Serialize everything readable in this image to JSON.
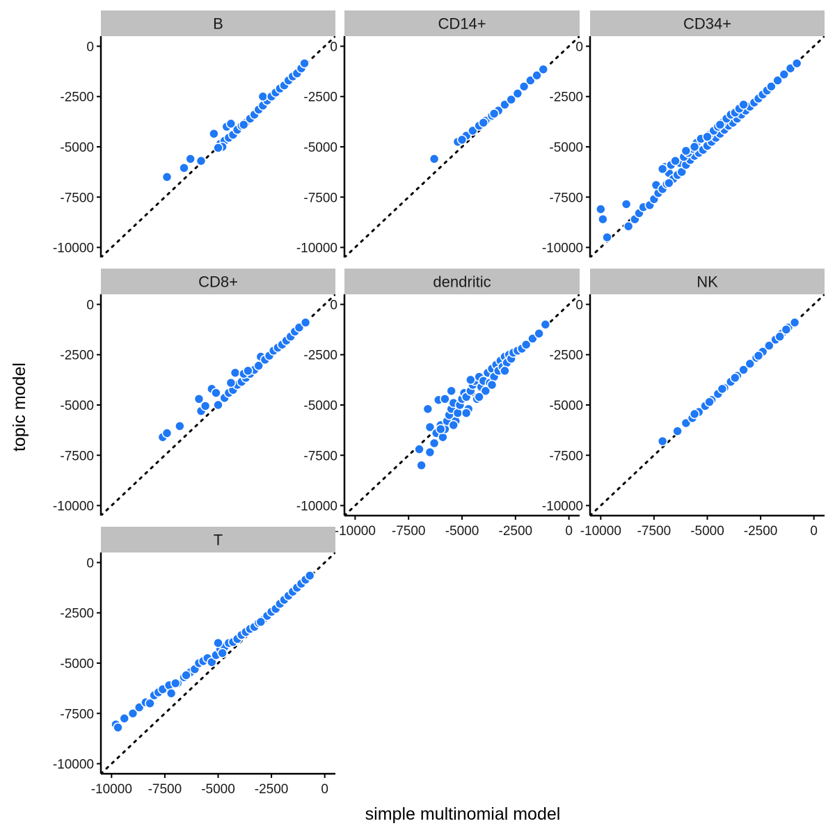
{
  "chart_data": {
    "type": "scatter",
    "title": "",
    "xlabel": "simple multinomial model",
    "ylabel": "topic model",
    "xlim": [
      -10500,
      500
    ],
    "ylim": [
      -10500,
      500
    ],
    "x_ticks": [
      -10000,
      -7500,
      -5000,
      -2500,
      0
    ],
    "x_tick_labels": [
      "-10000",
      "-7500",
      "-5000",
      "-2500",
      "0"
    ],
    "y_ticks": [
      0,
      -2500,
      -5000,
      -7500,
      -10000
    ],
    "y_tick_labels": [
      "0",
      "-2500",
      "-5000",
      "-7500",
      "-10000"
    ],
    "reference_line": {
      "type": "identity",
      "style": "dotted"
    },
    "colors": {
      "point": "#1f78f5",
      "point_outline": "#ffffff",
      "strip_bg": "#c0c0c0",
      "axis": "#000000"
    },
    "facets": [
      {
        "label": "B",
        "points": [
          [
            -7400,
            -6500
          ],
          [
            -6600,
            -6050
          ],
          [
            -6300,
            -5600
          ],
          [
            -5800,
            -5700
          ],
          [
            -5200,
            -4350
          ],
          [
            -4600,
            -4000
          ],
          [
            -4400,
            -3850
          ],
          [
            -4900,
            -4850
          ],
          [
            -4700,
            -4700
          ],
          [
            -4500,
            -4550
          ],
          [
            -4300,
            -4400
          ],
          [
            -4100,
            -4150
          ],
          [
            -3900,
            -3950
          ],
          [
            -3700,
            -3800
          ],
          [
            -3500,
            -3600
          ],
          [
            -3300,
            -3400
          ],
          [
            -3100,
            -3150
          ],
          [
            -2900,
            -2950
          ],
          [
            -2700,
            -2700
          ],
          [
            -2900,
            -2500
          ],
          [
            -2500,
            -2500
          ],
          [
            -2300,
            -2300
          ],
          [
            -2100,
            -2100
          ],
          [
            -1900,
            -1950
          ],
          [
            -1700,
            -1700
          ],
          [
            -1500,
            -1500
          ],
          [
            -1300,
            -1350
          ],
          [
            -1100,
            -1100
          ],
          [
            -950,
            -850
          ],
          [
            -4800,
            -5000
          ],
          [
            -5000,
            -5050
          ],
          [
            -3800,
            -3900
          ]
        ]
      },
      {
        "label": "CD14+",
        "points": [
          [
            -6300,
            -5600
          ],
          [
            -5200,
            -4750
          ],
          [
            -4800,
            -4450
          ],
          [
            -4500,
            -4200
          ],
          [
            -4200,
            -3950
          ],
          [
            -3900,
            -3700
          ],
          [
            -3600,
            -3450
          ],
          [
            -3300,
            -3200
          ],
          [
            -3000,
            -2900
          ],
          [
            -2700,
            -2650
          ],
          [
            -2400,
            -2350
          ],
          [
            -2100,
            -2000
          ],
          [
            -1800,
            -1700
          ],
          [
            -1500,
            -1450
          ],
          [
            -1200,
            -1150
          ],
          [
            -5000,
            -4650
          ],
          [
            -4000,
            -3800
          ],
          [
            -3500,
            -3350
          ]
        ]
      },
      {
        "label": "CD34+",
        "points": [
          [
            -10000,
            -8100
          ],
          [
            -9900,
            -8600
          ],
          [
            -9700,
            -9500
          ],
          [
            -8800,
            -7850
          ],
          [
            -8700,
            -8950
          ],
          [
            -8400,
            -8600
          ],
          [
            -8200,
            -8300
          ],
          [
            -8000,
            -8000
          ],
          [
            -7700,
            -7900
          ],
          [
            -7500,
            -7600
          ],
          [
            -7300,
            -7300
          ],
          [
            -7400,
            -6900
          ],
          [
            -7100,
            -7100
          ],
          [
            -6900,
            -6850
          ],
          [
            -6800,
            -6300
          ],
          [
            -6600,
            -6600
          ],
          [
            -6400,
            -6400
          ],
          [
            -6200,
            -6250
          ],
          [
            -6300,
            -5800
          ],
          [
            -6000,
            -5900
          ],
          [
            -5800,
            -5650
          ],
          [
            -5600,
            -5450
          ],
          [
            -5400,
            -5300
          ],
          [
            -5500,
            -4800
          ],
          [
            -5200,
            -5150
          ],
          [
            -5000,
            -4950
          ],
          [
            -4800,
            -4750
          ],
          [
            -4600,
            -4550
          ],
          [
            -4400,
            -4350
          ],
          [
            -4200,
            -4150
          ],
          [
            -4000,
            -3950
          ],
          [
            -3800,
            -3800
          ],
          [
            -3600,
            -3600
          ],
          [
            -3400,
            -3400
          ],
          [
            -3200,
            -3200
          ],
          [
            -3000,
            -3000
          ],
          [
            -2800,
            -2800
          ],
          [
            -2600,
            -2600
          ],
          [
            -2400,
            -2400
          ],
          [
            -2200,
            -2200
          ],
          [
            -2000,
            -2000
          ],
          [
            -1700,
            -1700
          ],
          [
            -1400,
            -1400
          ],
          [
            -1100,
            -1100
          ],
          [
            -800,
            -850
          ],
          [
            -7000,
            -6000
          ],
          [
            -6700,
            -5900
          ],
          [
            -6500,
            -5700
          ],
          [
            -6100,
            -5500
          ],
          [
            -5900,
            -5300
          ],
          [
            -5700,
            -5100
          ],
          [
            -5300,
            -4600
          ],
          [
            -4900,
            -4400
          ],
          [
            -4700,
            -4200
          ],
          [
            -4500,
            -4000
          ],
          [
            -4300,
            -3800
          ],
          [
            -4100,
            -3600
          ],
          [
            -3900,
            -3400
          ],
          [
            -3700,
            -3300
          ],
          [
            -3500,
            -3100
          ],
          [
            -5000,
            -4500
          ],
          [
            -5600,
            -5000
          ],
          [
            -6000,
            -5200
          ],
          [
            -4400,
            -3900
          ],
          [
            -3300,
            -2900
          ],
          [
            -7100,
            -6100
          ],
          [
            -6800,
            -6800
          ]
        ]
      },
      {
        "label": "CD8+",
        "points": [
          [
            -7600,
            -6600
          ],
          [
            -7400,
            -6400
          ],
          [
            -6800,
            -6050
          ],
          [
            -5800,
            -5300
          ],
          [
            -5900,
            -4700
          ],
          [
            -5600,
            -5050
          ],
          [
            -5300,
            -4200
          ],
          [
            -5100,
            -4400
          ],
          [
            -5000,
            -5000
          ],
          [
            -4700,
            -4650
          ],
          [
            -4500,
            -4400
          ],
          [
            -4300,
            -4250
          ],
          [
            -4100,
            -4000
          ],
          [
            -3900,
            -3850
          ],
          [
            -3700,
            -3650
          ],
          [
            -3500,
            -3450
          ],
          [
            -3300,
            -3250
          ],
          [
            -3100,
            -3050
          ],
          [
            -3000,
            -2600
          ],
          [
            -2800,
            -2750
          ],
          [
            -2600,
            -2550
          ],
          [
            -2400,
            -2300
          ],
          [
            -2200,
            -2150
          ],
          [
            -2000,
            -2000
          ],
          [
            -1800,
            -1800
          ],
          [
            -1600,
            -1600
          ],
          [
            -1400,
            -1350
          ],
          [
            -1200,
            -1150
          ],
          [
            -900,
            -900
          ],
          [
            -4200,
            -3400
          ],
          [
            -4400,
            -3900
          ],
          [
            -3800,
            -3450
          ],
          [
            -3600,
            -3300
          ]
        ]
      },
      {
        "label": "dendritic",
        "points": [
          [
            -7000,
            -7200
          ],
          [
            -6900,
            -8000
          ],
          [
            -6500,
            -7350
          ],
          [
            -6300,
            -6900
          ],
          [
            -6500,
            -6100
          ],
          [
            -6600,
            -5200
          ],
          [
            -6200,
            -6400
          ],
          [
            -6000,
            -6000
          ],
          [
            -6100,
            -4750
          ],
          [
            -5900,
            -6600
          ],
          [
            -5800,
            -6200
          ],
          [
            -5700,
            -5800
          ],
          [
            -5600,
            -5500
          ],
          [
            -5500,
            -5200
          ],
          [
            -5400,
            -4900
          ],
          [
            -5300,
            -5800
          ],
          [
            -5200,
            -5400
          ],
          [
            -5100,
            -5000
          ],
          [
            -5000,
            -4700
          ],
          [
            -4900,
            -4400
          ],
          [
            -4800,
            -4600
          ],
          [
            -4700,
            -5200
          ],
          [
            -4600,
            -4300
          ],
          [
            -4500,
            -4000
          ],
          [
            -4400,
            -3800
          ],
          [
            -4300,
            -4700
          ],
          [
            -4200,
            -3600
          ],
          [
            -4100,
            -4100
          ],
          [
            -4000,
            -3800
          ],
          [
            -3900,
            -4300
          ],
          [
            -3800,
            -3400
          ],
          [
            -3700,
            -3900
          ],
          [
            -3600,
            -3200
          ],
          [
            -3500,
            -3600
          ],
          [
            -3400,
            -3000
          ],
          [
            -3300,
            -3300
          ],
          [
            -3200,
            -2800
          ],
          [
            -3100,
            -3100
          ],
          [
            -3000,
            -2600
          ],
          [
            -2900,
            -2900
          ],
          [
            -2800,
            -2500
          ],
          [
            -2700,
            -2700
          ],
          [
            -2600,
            -2400
          ],
          [
            -2400,
            -2300
          ],
          [
            -2200,
            -2200
          ],
          [
            -2000,
            -2000
          ],
          [
            -1700,
            -1700
          ],
          [
            -1400,
            -1450
          ],
          [
            -1100,
            -1000
          ],
          [
            -5500,
            -4300
          ],
          [
            -4600,
            -3750
          ],
          [
            -5800,
            -4700
          ],
          [
            -6000,
            -6200
          ],
          [
            -5400,
            -6000
          ],
          [
            -4800,
            -5400
          ],
          [
            -4200,
            -4600
          ],
          [
            -3600,
            -4000
          ],
          [
            -3000,
            -3300
          ]
        ]
      },
      {
        "label": "NK",
        "points": [
          [
            -7100,
            -6800
          ],
          [
            -6400,
            -6300
          ],
          [
            -6000,
            -5900
          ],
          [
            -5700,
            -5650
          ],
          [
            -5400,
            -5350
          ],
          [
            -5100,
            -5050
          ],
          [
            -4800,
            -4750
          ],
          [
            -4500,
            -4450
          ],
          [
            -4200,
            -4150
          ],
          [
            -3900,
            -3850
          ],
          [
            -3600,
            -3550
          ],
          [
            -3300,
            -3250
          ],
          [
            -3000,
            -2950
          ],
          [
            -2700,
            -2650
          ],
          [
            -2400,
            -2350
          ],
          [
            -2100,
            -2050
          ],
          [
            -1800,
            -1750
          ],
          [
            -1500,
            -1450
          ],
          [
            -1200,
            -1150
          ],
          [
            -900,
            -900
          ],
          [
            -5600,
            -5450
          ],
          [
            -4900,
            -4850
          ],
          [
            -4300,
            -4200
          ],
          [
            -3700,
            -3650
          ],
          [
            -2600,
            -2550
          ],
          [
            -1600,
            -1600
          ],
          [
            -1300,
            -1250
          ]
        ]
      },
      {
        "label": "T",
        "points": [
          [
            -9800,
            -8050
          ],
          [
            -9700,
            -8200
          ],
          [
            -9400,
            -7750
          ],
          [
            -9000,
            -7500
          ],
          [
            -8700,
            -7200
          ],
          [
            -8400,
            -6950
          ],
          [
            -8200,
            -7000
          ],
          [
            -8000,
            -6600
          ],
          [
            -7800,
            -6450
          ],
          [
            -7600,
            -6300
          ],
          [
            -7300,
            -6100
          ],
          [
            -7200,
            -6500
          ],
          [
            -6900,
            -6000
          ],
          [
            -6600,
            -5700
          ],
          [
            -6300,
            -5450
          ],
          [
            -6100,
            -5300
          ],
          [
            -5900,
            -5000
          ],
          [
            -5700,
            -4900
          ],
          [
            -5500,
            -4750
          ],
          [
            -5300,
            -4950
          ],
          [
            -5100,
            -4600
          ],
          [
            -4900,
            -4300
          ],
          [
            -4700,
            -4200
          ],
          [
            -4500,
            -4000
          ],
          [
            -4300,
            -3950
          ],
          [
            -4100,
            -3800
          ],
          [
            -3900,
            -3600
          ],
          [
            -3700,
            -3450
          ],
          [
            -3500,
            -3300
          ],
          [
            -3300,
            -3200
          ],
          [
            -3100,
            -3000
          ],
          [
            -2900,
            -2850
          ],
          [
            -2700,
            -2650
          ],
          [
            -2500,
            -2450
          ],
          [
            -2300,
            -2300
          ],
          [
            -2100,
            -2050
          ],
          [
            -1900,
            -1850
          ],
          [
            -1700,
            -1650
          ],
          [
            -1500,
            -1450
          ],
          [
            -1300,
            -1250
          ],
          [
            -1100,
            -1050
          ],
          [
            -900,
            -850
          ],
          [
            -700,
            -650
          ],
          [
            -5000,
            -4000
          ],
          [
            -4800,
            -4500
          ],
          [
            -6500,
            -5600
          ],
          [
            -7000,
            -6000
          ],
          [
            -3000,
            -2950
          ]
        ]
      }
    ]
  }
}
